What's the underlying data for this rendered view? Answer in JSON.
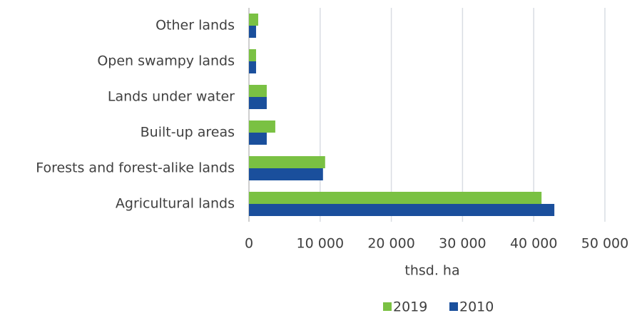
{
  "chart_data": {
    "type": "bar",
    "orientation": "horizontal",
    "categories": [
      "Other lands",
      "Open swampy lands",
      "Lands under water",
      "Built-up areas",
      "Forests and forest-alike lands",
      "Agricultural lands"
    ],
    "series": [
      {
        "name": "2019",
        "color": "#7ac143",
        "values": [
          1300,
          1000,
          2500,
          3700,
          10700,
          41100
        ]
      },
      {
        "name": "2010",
        "color": "#1a4f9c",
        "values": [
          1000,
          1000,
          2500,
          2500,
          10400,
          42900
        ]
      }
    ],
    "xlabel": "thsd. ha",
    "xlim": [
      0,
      50000
    ],
    "xticks": [
      0,
      {
        "value": 10000,
        "label": "10 000"
      },
      {
        "value": 20000,
        "label": "20 000"
      },
      {
        "value": 30000,
        "label": "30 000"
      },
      {
        "value": 40000,
        "label": "40 000"
      },
      {
        "value": 50000,
        "label": "50 000"
      }
    ],
    "grid": true,
    "legend": "bottom"
  }
}
